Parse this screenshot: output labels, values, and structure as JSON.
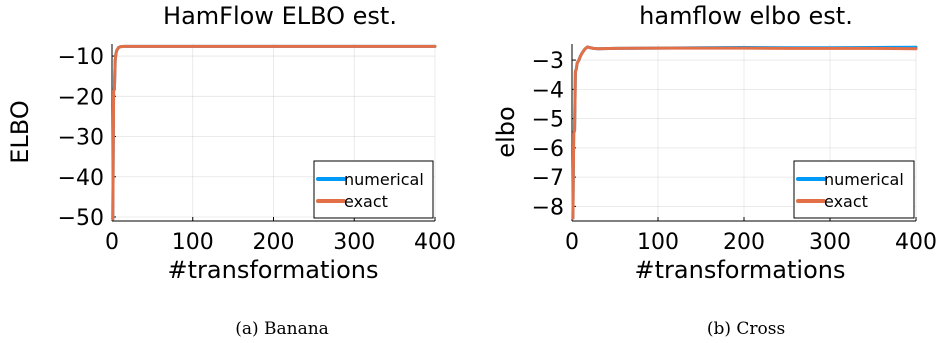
{
  "chart_data": [
    {
      "type": "line",
      "title": "HamFlow ELBO est.",
      "xlabel": "#transformations",
      "ylabel": "ELBO",
      "caption": "(a) Banana",
      "xlim": [
        0,
        400
      ],
      "ylim": [
        -51,
        -7
      ],
      "xticks": [
        0,
        100,
        200,
        300,
        400
      ],
      "xtick_labels": [
        "0",
        "100",
        "200",
        "300",
        "400"
      ],
      "yticks": [
        -50,
        -40,
        -30,
        -20,
        -10
      ],
      "ytick_labels": [
        "−50",
        "−40",
        "−30",
        "−20",
        "−10"
      ],
      "grid": true,
      "legend": "bottom-right",
      "series": [
        {
          "name": "numerical",
          "color": "#009af9",
          "x": [
            1,
            2,
            3,
            4,
            5,
            6,
            8,
            10,
            15,
            20,
            50,
            100,
            200,
            300,
            400
          ],
          "values": [
            -50.5,
            -18.5,
            -18.3,
            -11.0,
            -9.3,
            -8.6,
            -7.9,
            -7.7,
            -7.6,
            -7.6,
            -7.6,
            -7.6,
            -7.6,
            -7.6,
            -7.6
          ]
        },
        {
          "name": "exact",
          "color": "#e26f46",
          "x": [
            1,
            2,
            3,
            4,
            5,
            6,
            8,
            10,
            15,
            20,
            50,
            100,
            200,
            300,
            400
          ],
          "values": [
            -50.5,
            -18.5,
            -18.3,
            -11.0,
            -9.3,
            -8.6,
            -7.9,
            -7.7,
            -7.6,
            -7.6,
            -7.6,
            -7.6,
            -7.6,
            -7.6,
            -7.6
          ]
        }
      ]
    },
    {
      "type": "line",
      "title": "hamflow elbo est.",
      "xlabel": "#transformations",
      "ylabel": "elbo",
      "caption": "(b) Cross",
      "xlim": [
        0,
        400
      ],
      "ylim": [
        -8.5,
        -2.45
      ],
      "xticks": [
        0,
        100,
        200,
        300,
        400
      ],
      "xtick_labels": [
        "0",
        "100",
        "200",
        "300",
        "400"
      ],
      "yticks": [
        -8,
        -7,
        -6,
        -5,
        -4,
        -3
      ],
      "ytick_labels": [
        "−8",
        "−7",
        "−6",
        "−5",
        "−4",
        "−3"
      ],
      "grid": true,
      "legend": "bottom-right",
      "series": [
        {
          "name": "numerical",
          "color": "#009af9",
          "x": [
            1,
            2,
            3,
            4,
            5,
            6,
            7,
            8,
            10,
            12,
            15,
            18,
            20,
            25,
            30,
            50,
            100,
            150,
            200,
            250,
            300,
            350,
            400
          ],
          "values": [
            -8.4,
            -5.5,
            -5.4,
            -3.4,
            -3.3,
            -3.1,
            -3.05,
            -3.0,
            -2.85,
            -2.75,
            -2.62,
            -2.55,
            -2.57,
            -2.6,
            -2.61,
            -2.6,
            -2.59,
            -2.58,
            -2.57,
            -2.58,
            -2.58,
            -2.57,
            -2.56
          ]
        },
        {
          "name": "exact",
          "color": "#e26f46",
          "x": [
            1,
            2,
            3,
            4,
            5,
            6,
            7,
            8,
            10,
            12,
            15,
            18,
            20,
            25,
            30,
            50,
            100,
            150,
            200,
            250,
            300,
            350,
            400
          ],
          "values": [
            -8.4,
            -5.5,
            -5.4,
            -3.4,
            -3.3,
            -3.1,
            -3.05,
            -3.0,
            -2.85,
            -2.75,
            -2.62,
            -2.55,
            -2.57,
            -2.6,
            -2.61,
            -2.6,
            -2.59,
            -2.59,
            -2.59,
            -2.6,
            -2.6,
            -2.6,
            -2.61
          ]
        }
      ]
    }
  ]
}
